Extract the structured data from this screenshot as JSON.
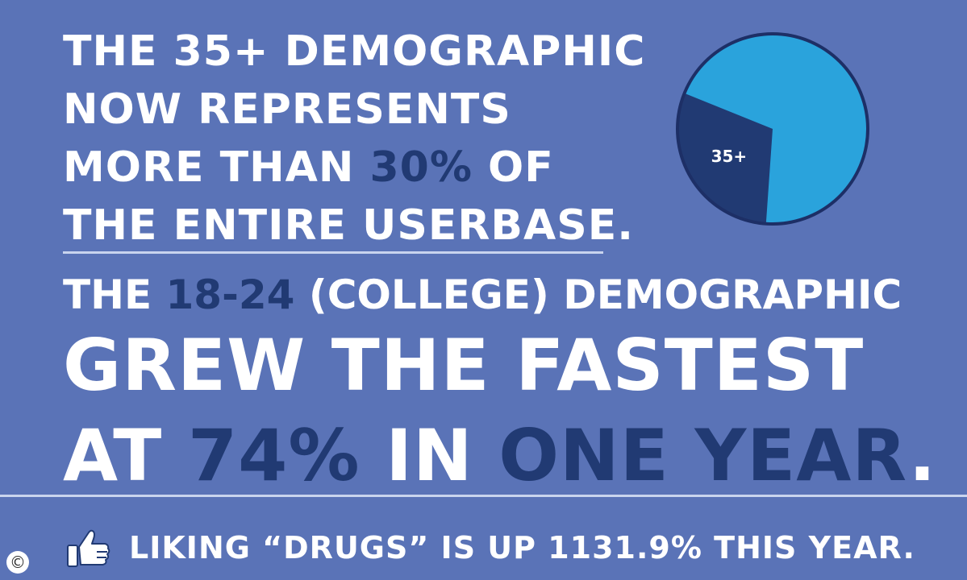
{
  "headline1": {
    "line1": "THE 35+ DEMOGRAPHIC",
    "line2": "NOW REPRESENTS",
    "line3_pre": "MORE THAN ",
    "line3_highlight": "30%",
    "line3_post": " OF",
    "line4": "THE ENTIRE USERBASE."
  },
  "headline2": {
    "line1_pre": "THE ",
    "line1_highlight": "18-24",
    "line1_post": " (COLLEGE) DEMOGRAPHIC",
    "line2": "GREW THE FASTEST",
    "line3_pre": "AT ",
    "line3_highlight1": "74%",
    "line3_mid": " IN ",
    "line3_highlight2": "ONE YEAR",
    "line3_post": "."
  },
  "footer": {
    "icon": "thumbs-up-icon",
    "text": "LIKING “DRUGS” IS UP 1131.9% THIS YEAR."
  },
  "copyright": "©",
  "colors": {
    "background": "#5a73b7",
    "highlight": "#213a73",
    "pie_main": "#2aa3dc",
    "pie_slice": "#213a73",
    "pie_border": "#1d2f66"
  },
  "chart_data": {
    "type": "pie",
    "slices": [
      {
        "label": "35+",
        "value": 30,
        "color": "#213a73"
      },
      {
        "label": "",
        "value": 70,
        "color": "#2aa3dc"
      }
    ]
  }
}
